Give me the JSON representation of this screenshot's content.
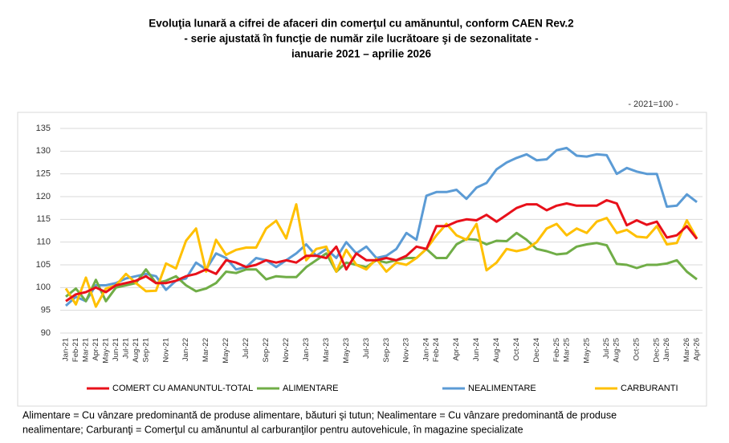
{
  "chart_data": {
    "type": "line",
    "title": [
      "Evoluţia lunară a cifrei de afaceri din comerţul cu amănuntul, conform CAEN Rev.2",
      "- serie ajustată în funcţie de număr zile lucrătoare şi de sezonalitate -",
      "ianuarie 2021 – aprilie 2026"
    ],
    "unit_note": "- 2021=100 -",
    "categories": [
      "Jan-21",
      "Feb-21",
      "Mar-21",
      "Apr-21",
      "May-21",
      "Jun-21",
      "Jul-21",
      "Aug-21",
      "Sep-21",
      null,
      "Nov-21",
      null,
      "Jan-22",
      null,
      "Mar-22",
      null,
      "May-22",
      null,
      "Jul-22",
      null,
      "Sep-22",
      null,
      "Nov-22",
      null,
      "Jan-23",
      null,
      "Mar-23",
      null,
      "May-23",
      null,
      "Jul-23",
      null,
      "Sep-23",
      null,
      "Nov-23",
      null,
      "Jan-24",
      "Feb-24",
      null,
      "Apr-24",
      null,
      "Jun-24",
      null,
      "Aug-24",
      null,
      "Oct-24",
      null,
      "Dec-24",
      null,
      "Feb-25",
      "Mar-25",
      null,
      "May-25",
      null,
      "Jul-25",
      "Aug-25",
      null,
      "Oct-25",
      null,
      "Dec-25",
      "Jan-26",
      null,
      "Mar-26",
      "Apr-26"
    ],
    "series": [
      {
        "name": "COMERT CU AMANUNTUL-TOTAL",
        "color": "#e8101a",
        "values": [
          97,
          98.5,
          99,
          100,
          99,
          100.5,
          101,
          101.5,
          102.5,
          101,
          101,
          101.5,
          102.5,
          103,
          104,
          103,
          106,
          105.5,
          104.5,
          105,
          106,
          105.5,
          106,
          105.5,
          107,
          107,
          106.5,
          109,
          104,
          107.5,
          106,
          106,
          106.5,
          106,
          107,
          109,
          108.5,
          113.5,
          113.5,
          114.5,
          115,
          114.8,
          116,
          114.5,
          116,
          117.5,
          118.3,
          118.3,
          117,
          118,
          118.5,
          118,
          118,
          118,
          119.2,
          118.5,
          113.7,
          114.8,
          113.8,
          114.5,
          111,
          111.5,
          113.5,
          110.7
        ]
      },
      {
        "name": "ALIMENTARE",
        "color": "#70ad47",
        "values": [
          98,
          99.8,
          97,
          101.7,
          97,
          100,
          100.5,
          101,
          104,
          101,
          101.5,
          102.5,
          100.5,
          99.2,
          99.8,
          101,
          103.5,
          103.2,
          104,
          104,
          101.8,
          102.5,
          102.3,
          102.3,
          104.5,
          106,
          107.5,
          103.5,
          105.5,
          105,
          104.5,
          106,
          105.5,
          106,
          106.5,
          106.5,
          108.5,
          106.5,
          106.5,
          109.5,
          110.7,
          110.5,
          109.5,
          110.3,
          110.2,
          112,
          110.5,
          108.5,
          108,
          107.3,
          107.5,
          109,
          109.5,
          109.8,
          109.3,
          105.2,
          105,
          104.3,
          105,
          105,
          105.3,
          106,
          103.5,
          101.8
        ]
      },
      {
        "name": "NEALIMENTARE",
        "color": "#5b9bd5",
        "values": [
          96,
          98,
          97,
          100.5,
          100.5,
          101,
          102,
          102.5,
          103,
          102.5,
          99.5,
          101.5,
          102,
          105.5,
          104,
          107.5,
          106.5,
          104,
          104.5,
          106.5,
          106,
          104.5,
          106,
          107.5,
          109.5,
          107,
          108.5,
          106.5,
          110,
          107.5,
          109,
          106.5,
          107,
          108.5,
          112,
          110.5,
          120.2,
          121,
          121,
          121.5,
          119.5,
          122,
          123,
          126,
          127.5,
          128.5,
          129.3,
          128,
          128.2,
          130.2,
          130.7,
          129,
          128.8,
          129.3,
          129.1,
          125,
          126.3,
          125.5,
          125,
          125,
          117.8,
          118,
          120.5,
          118.8
        ]
      },
      {
        "name": "CARBURANTI",
        "color": "#ffc000",
        "values": [
          99.8,
          96.3,
          102.2,
          95.8,
          99.8,
          100.5,
          103,
          101,
          99.2,
          99.3,
          105.3,
          104.2,
          110.3,
          113,
          103.5,
          110.5,
          107.2,
          108.3,
          108.8,
          108.8,
          113,
          114.7,
          110.8,
          118.3,
          106,
          108.5,
          109,
          103.5,
          108.3,
          105,
          104,
          106.3,
          103.5,
          105.5,
          105,
          106.5,
          108.5,
          111.5,
          114,
          111.5,
          110.5,
          114,
          103.8,
          105.5,
          108.5,
          108,
          108.5,
          110,
          113,
          114,
          111.5,
          113,
          112,
          114.5,
          115.3,
          112,
          112.7,
          111.2,
          111,
          113.5,
          109.5,
          109.8,
          114.8,
          110.8
        ]
      }
    ],
    "ylim": [
      90,
      135
    ],
    "yticks": [
      90,
      95,
      100,
      105,
      110,
      115,
      120,
      125,
      130,
      135
    ],
    "grid": true,
    "footnote": [
      "Alimentare = Cu vânzare predominantă de produse alimentare, băuturi şi tutun; Nealimentare = Cu vânzare predominantă de produse",
      "nealimentare; Carburanţi = Comerţul cu amănuntul al carburanţilor pentru autovehicule, în magazine specializate"
    ]
  }
}
